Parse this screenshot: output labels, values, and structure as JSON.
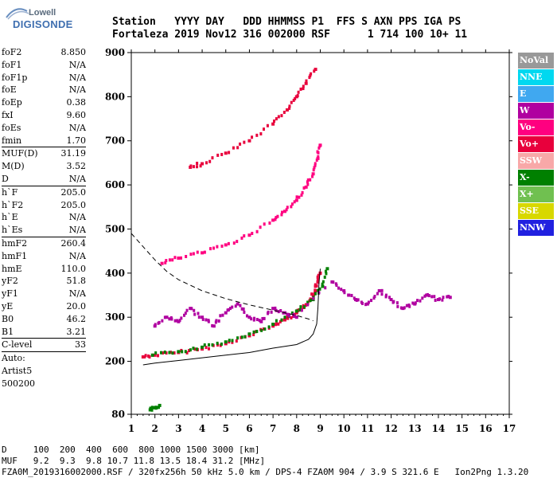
{
  "logo": {
    "line1": "Lowell",
    "line2": "DIGISONDE"
  },
  "header": {
    "line1": "Station   YYYY DAY   DDD HHMMSS P1  FFS S AXN PPS IGA PS",
    "line2": "Fortaleza 2019 Nov12 316 002000 RSF      1 714 100 10+ 11"
  },
  "params": [
    {
      "label": "foF2",
      "value": "8.850"
    },
    {
      "label": "foF1",
      "value": "N/A"
    },
    {
      "label": "foF1p",
      "value": "N/A"
    },
    {
      "label": "foE",
      "value": "N/A"
    },
    {
      "label": "foEp",
      "value": "0.38"
    },
    {
      "label": "fxI",
      "value": "9.60"
    },
    {
      "label": "foEs",
      "value": "N/A"
    },
    {
      "label": "fmin",
      "value": "1.70"
    },
    {
      "sep": true
    },
    {
      "label": "MUF(D)",
      "value": "31.19"
    },
    {
      "label": "M(D)",
      "value": "3.52"
    },
    {
      "label": "D",
      "value": "N/A"
    },
    {
      "sep": true
    },
    {
      "label": "h`F",
      "value": "205.0"
    },
    {
      "label": "h`F2",
      "value": "205.0"
    },
    {
      "label": "h`E",
      "value": "N/A"
    },
    {
      "label": "h`Es",
      "value": "N/A"
    },
    {
      "sep": true
    },
    {
      "label": "hmF2",
      "value": "260.4"
    },
    {
      "label": "hmF1",
      "value": "N/A"
    },
    {
      "label": "hmE",
      "value": "110.0"
    },
    {
      "label": "yF2",
      "value": "51.8"
    },
    {
      "label": "yF1",
      "value": "N/A"
    },
    {
      "label": "yE",
      "value": "20.0"
    },
    {
      "label": "B0",
      "value": "46.2"
    },
    {
      "label": "B1",
      "value": "3.21"
    },
    {
      "sep": true
    },
    {
      "label": "C-level",
      "value": "33"
    },
    {
      "sep": true
    },
    {
      "label": "Auto:",
      "value": ""
    },
    {
      "label": "Artist5",
      "value": ""
    },
    {
      "label": "500200",
      "value": ""
    }
  ],
  "legend": [
    {
      "label": "NoVal",
      "color": "#999999"
    },
    {
      "label": "NNE",
      "color": "#00d8f0"
    },
    {
      "label": "E",
      "color": "#40a8f0"
    },
    {
      "label": "W",
      "color": "#b000a0"
    },
    {
      "label": "Vo-",
      "color": "#ff0080"
    },
    {
      "label": "Vo+",
      "color": "#e8003c"
    },
    {
      "label": "SSW",
      "color": "#f8a8a8"
    },
    {
      "label": "X-",
      "color": "#008000"
    },
    {
      "label": "X+",
      "color": "#70c050"
    },
    {
      "label": "SSE",
      "color": "#d8d800"
    },
    {
      "label": "NNW",
      "color": "#2020e0"
    }
  ],
  "footer": {
    "line1": "D     100  200  400  600  800 1000 1500 3000 [km]",
    "line2": "MUF   9.2  9.3  9.8 10.7 11.8 13.5 18.4 31.2 [MHz]",
    "line3": "FZA0M_2019316002000.RSF / 320fx256h 50 kHz 5.0 km / DPS-4 FZA0M 904 / 3.9 S 321.6 E   Ion2Png 1.3.20"
  },
  "chart_data": {
    "type": "scatter",
    "xlim": [
      1,
      17
    ],
    "ylim": [
      80,
      900
    ],
    "x_ticks": [
      1,
      2,
      3,
      4,
      5,
      6,
      7,
      8,
      9,
      10,
      11,
      12,
      13,
      14,
      15,
      16,
      17
    ],
    "y_ticks": [
      80,
      200,
      300,
      400,
      500,
      600,
      700,
      800,
      900
    ],
    "grid": false,
    "x_units": "MHz",
    "y_units": "km",
    "traces": [
      {
        "name": "O-trace F2 (1-hop)",
        "color": "#e8003c",
        "points": [
          [
            1.5,
            210
          ],
          [
            2,
            214
          ],
          [
            3,
            220
          ],
          [
            4,
            228
          ],
          [
            5,
            240
          ],
          [
            6,
            258
          ],
          [
            7,
            280
          ],
          [
            7.5,
            294
          ],
          [
            8,
            310
          ],
          [
            8.3,
            322
          ],
          [
            8.6,
            340
          ],
          [
            8.8,
            360
          ],
          [
            8.9,
            380
          ],
          [
            9.0,
            400
          ]
        ]
      },
      {
        "name": "X-trace F2 (1-hop)",
        "color": "#008000",
        "points": [
          [
            1.9,
            214
          ],
          [
            3,
            222
          ],
          [
            4,
            232
          ],
          [
            5,
            244
          ],
          [
            6,
            262
          ],
          [
            7,
            284
          ],
          [
            8,
            314
          ],
          [
            8.7,
            340
          ],
          [
            9.1,
            370
          ],
          [
            9.3,
            410
          ]
        ]
      },
      {
        "name": "O-trace F2 (2-hop)",
        "color": "#ff0080",
        "points": [
          [
            2.3,
            422
          ],
          [
            3,
            434
          ],
          [
            4,
            446
          ],
          [
            5,
            464
          ],
          [
            6,
            486
          ],
          [
            7,
            520
          ],
          [
            7.5,
            540
          ],
          [
            8,
            565
          ],
          [
            8.4,
            595
          ],
          [
            8.7,
            625
          ],
          [
            8.9,
            660
          ],
          [
            9.0,
            690
          ]
        ]
      },
      {
        "name": "F2 (3-hop)",
        "color": "#e8003c",
        "points": [
          [
            3.5,
            640
          ],
          [
            4,
            648
          ],
          [
            5,
            672
          ],
          [
            6,
            700
          ],
          [
            7,
            738
          ],
          [
            7.6,
            770
          ],
          [
            8,
            800
          ],
          [
            8.4,
            830
          ],
          [
            8.8,
            862
          ]
        ]
      },
      {
        "name": "spread",
        "color": "#b000a0",
        "points": [
          [
            2,
            280
          ],
          [
            2.5,
            300
          ],
          [
            3,
            290
          ],
          [
            3.5,
            320
          ],
          [
            4,
            300
          ],
          [
            4.5,
            280
          ],
          [
            5,
            310
          ],
          [
            5.5,
            330
          ],
          [
            6,
            300
          ],
          [
            6.5,
            290
          ],
          [
            7,
            320
          ],
          [
            7.5,
            310
          ],
          [
            8,
            300
          ],
          [
            9.5,
            380
          ],
          [
            10,
            360
          ],
          [
            10.5,
            340
          ],
          [
            11,
            330
          ],
          [
            11.5,
            360
          ],
          [
            12,
            340
          ],
          [
            12.5,
            320
          ],
          [
            13,
            330
          ],
          [
            13.5,
            350
          ],
          [
            14,
            340
          ],
          [
            14.5,
            345
          ]
        ]
      },
      {
        "name": "E-layer",
        "color": "#008000",
        "points": [
          [
            1.8,
            90
          ],
          [
            2.0,
            95
          ],
          [
            2.2,
            100
          ]
        ]
      }
    ],
    "curves": [
      {
        "name": "profile (solid)",
        "style": "solid",
        "points": [
          [
            1.5,
            192
          ],
          [
            2,
            196
          ],
          [
            3,
            202
          ],
          [
            4,
            208
          ],
          [
            5,
            214
          ],
          [
            6,
            220
          ],
          [
            7,
            230
          ],
          [
            8,
            238
          ],
          [
            8.5,
            250
          ],
          [
            8.7,
            262
          ],
          [
            8.85,
            285
          ],
          [
            8.9,
            320
          ],
          [
            8.95,
            380
          ],
          [
            9.0,
            410
          ]
        ]
      },
      {
        "name": "MUF (dashed)",
        "style": "dashed",
        "points": [
          [
            1,
            490
          ],
          [
            1.5,
            460
          ],
          [
            2,
            430
          ],
          [
            2.5,
            404
          ],
          [
            3,
            385
          ],
          [
            4,
            360
          ],
          [
            5,
            342
          ],
          [
            6,
            328
          ],
          [
            7,
            316
          ],
          [
            8,
            304
          ],
          [
            8.5,
            296
          ],
          [
            8.7,
            292
          ]
        ]
      }
    ]
  }
}
